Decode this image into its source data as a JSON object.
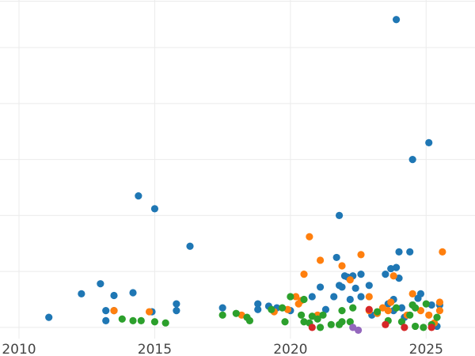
{
  "chart_data": {
    "type": "scatter",
    "title": "",
    "xlabel": "",
    "ylabel": "",
    "xlim": [
      2009.3,
      2026.8
    ],
    "ylim": [
      -0.2,
      5.85
    ],
    "x_ticks": [
      "2010",
      "2015",
      "2020",
      "2025"
    ],
    "grid": true,
    "legend": "none",
    "colors": {
      "blue": "#1f77b4",
      "orange": "#ff7f0e",
      "green": "#2ca02c",
      "red": "#d62728",
      "purple": "#9467bd"
    },
    "series": [
      {
        "color": "blue",
        "points": [
          [
            2011.1,
            0.18
          ],
          [
            2012.3,
            0.6
          ],
          [
            2013.0,
            0.78
          ],
          [
            2013.2,
            0.12
          ],
          [
            2013.2,
            0.3
          ],
          [
            2013.5,
            0.3
          ],
          [
            2013.5,
            0.57
          ],
          [
            2014.2,
            0.62
          ],
          [
            2014.4,
            2.35
          ],
          [
            2014.9,
            0.28
          ],
          [
            2015.0,
            2.12
          ],
          [
            2015.8,
            0.42
          ],
          [
            2015.8,
            0.3
          ],
          [
            2016.3,
            1.45
          ],
          [
            2017.5,
            0.35
          ],
          [
            2018.8,
            0.42
          ],
          [
            2018.8,
            0.32
          ],
          [
            2019.2,
            0.38
          ],
          [
            2019.5,
            0.35
          ],
          [
            2020.0,
            0.3
          ],
          [
            2020.8,
            0.55
          ],
          [
            2021.1,
            0.72
          ],
          [
            2021.3,
            0.32
          ],
          [
            2021.6,
            0.55
          ],
          [
            2021.7,
            1.25
          ],
          [
            2021.8,
            0.75
          ],
          [
            2021.8,
            2.0
          ],
          [
            2021.9,
            0.72
          ],
          [
            2022.0,
            0.92
          ],
          [
            2022.1,
            0.9
          ],
          [
            2022.2,
            0.5
          ],
          [
            2022.3,
            0.92
          ],
          [
            2022.4,
            0.7
          ],
          [
            2022.6,
            0.55
          ],
          [
            2022.6,
            0.95
          ],
          [
            2022.9,
            0.75
          ],
          [
            2023.0,
            0.22
          ],
          [
            2023.5,
            0.95
          ],
          [
            2023.6,
            0.42
          ],
          [
            2023.7,
            1.05
          ],
          [
            2023.8,
            0.3
          ],
          [
            2023.8,
            0.5
          ],
          [
            2023.9,
            5.5
          ],
          [
            2023.9,
            1.07
          ],
          [
            2024.0,
            1.35
          ],
          [
            2024.0,
            0.88
          ],
          [
            2024.1,
            0.35
          ],
          [
            2024.2,
            0.18
          ],
          [
            2024.4,
            1.35
          ],
          [
            2024.5,
            0.4
          ],
          [
            2024.5,
            3.0
          ],
          [
            2024.7,
            0.52
          ],
          [
            2024.8,
            0.6
          ],
          [
            2025.1,
            3.3
          ],
          [
            2025.2,
            0.4
          ],
          [
            2025.4,
            0.02
          ],
          [
            2025.5,
            0.4
          ]
        ]
      },
      {
        "color": "orange",
        "points": [
          [
            2013.5,
            0.3
          ],
          [
            2014.8,
            0.28
          ],
          [
            2018.2,
            0.22
          ],
          [
            2019.4,
            0.28
          ],
          [
            2019.9,
            0.32
          ],
          [
            2020.2,
            0.55
          ],
          [
            2020.4,
            0.48
          ],
          [
            2020.5,
            0.95
          ],
          [
            2020.3,
            0.42
          ],
          [
            2020.7,
            1.62
          ],
          [
            2021.0,
            0.22
          ],
          [
            2021.1,
            1.2
          ],
          [
            2021.9,
            1.1
          ],
          [
            2022.2,
            0.85
          ],
          [
            2022.6,
            1.3
          ],
          [
            2022.9,
            0.3
          ],
          [
            2022.9,
            0.55
          ],
          [
            2023.2,
            0.25
          ],
          [
            2023.4,
            0.35
          ],
          [
            2023.6,
            0.3
          ],
          [
            2023.7,
            0.45
          ],
          [
            2023.8,
            0.92
          ],
          [
            2024.3,
            0.22
          ],
          [
            2024.5,
            0.6
          ],
          [
            2024.8,
            0.3
          ],
          [
            2025.1,
            0.22
          ],
          [
            2025.3,
            0.08
          ],
          [
            2025.5,
            0.45
          ],
          [
            2025.5,
            0.3
          ],
          [
            2025.6,
            1.35
          ]
        ]
      },
      {
        "color": "green",
        "points": [
          [
            2013.8,
            0.15
          ],
          [
            2014.2,
            0.12
          ],
          [
            2014.5,
            0.12
          ],
          [
            2015.0,
            0.1
          ],
          [
            2015.4,
            0.08
          ],
          [
            2017.5,
            0.22
          ],
          [
            2018.0,
            0.25
          ],
          [
            2018.4,
            0.18
          ],
          [
            2018.5,
            0.12
          ],
          [
            2019.3,
            0.32
          ],
          [
            2019.7,
            0.35
          ],
          [
            2019.8,
            0.1
          ],
          [
            2020.0,
            0.55
          ],
          [
            2020.4,
            0.22
          ],
          [
            2020.5,
            0.5
          ],
          [
            2020.5,
            0.1
          ],
          [
            2020.7,
            0.08
          ],
          [
            2020.8,
            0.2
          ],
          [
            2021.0,
            0.15
          ],
          [
            2021.1,
            0.0
          ],
          [
            2021.2,
            0.22
          ],
          [
            2021.5,
            0.05
          ],
          [
            2021.8,
            0.05
          ],
          [
            2021.9,
            0.1
          ],
          [
            2021.9,
            0.3
          ],
          [
            2022.2,
            0.1
          ],
          [
            2022.3,
            0.35
          ],
          [
            2023.2,
            0.28
          ],
          [
            2023.6,
            0.12
          ],
          [
            2023.9,
            0.35
          ],
          [
            2024.1,
            0.1
          ],
          [
            2024.4,
            0.22
          ],
          [
            2024.5,
            0.4
          ],
          [
            2024.6,
            0.35
          ],
          [
            2024.6,
            0.02
          ],
          [
            2024.9,
            0.0
          ],
          [
            2025.0,
            0.42
          ],
          [
            2025.2,
            0.05
          ],
          [
            2025.4,
            0.18
          ]
        ]
      },
      {
        "color": "red",
        "points": [
          [
            2020.8,
            0.0
          ],
          [
            2022.9,
            0.32
          ],
          [
            2023.5,
            0.05
          ],
          [
            2024.2,
            0.0
          ],
          [
            2025.2,
            0.0
          ]
        ]
      },
      {
        "color": "purple",
        "points": [
          [
            2022.3,
            0.0
          ],
          [
            2022.5,
            -0.05
          ]
        ]
      }
    ]
  }
}
